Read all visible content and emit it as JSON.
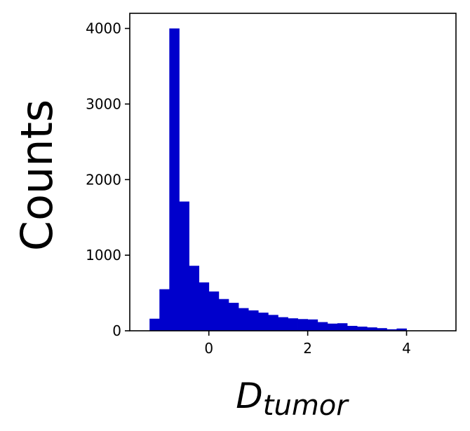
{
  "chart_data": {
    "type": "bar",
    "title": "",
    "ylabel": "Counts",
    "xlabel_main": "D",
    "xlabel_sub": "tumor",
    "xlim": [
      -1.6,
      5.0
    ],
    "ylim": [
      0,
      4200
    ],
    "x_ticks": [
      {
        "value": 0,
        "label": "0"
      },
      {
        "value": 2,
        "label": "2"
      },
      {
        "value": 4,
        "label": "4"
      }
    ],
    "y_ticks": [
      {
        "value": 0,
        "label": "0"
      },
      {
        "value": 1000,
        "label": "1000"
      },
      {
        "value": 2000,
        "label": "2000"
      },
      {
        "value": 3000,
        "label": "3000"
      },
      {
        "value": 4000,
        "label": "4000"
      }
    ],
    "bin_edges": [
      -1.2,
      -1.0,
      -0.8,
      -0.6,
      -0.4,
      -0.2,
      0.0,
      0.2,
      0.4,
      0.6,
      0.8,
      1.0,
      1.2,
      1.4,
      1.6,
      1.8,
      2.0,
      2.2,
      2.4,
      2.6,
      2.8,
      3.0,
      3.2,
      3.4,
      3.6,
      3.8,
      4.0
    ],
    "values": [
      160,
      550,
      4000,
      1710,
      860,
      640,
      520,
      420,
      370,
      300,
      270,
      240,
      210,
      180,
      165,
      155,
      150,
      115,
      95,
      100,
      65,
      55,
      45,
      35,
      20,
      30
    ],
    "bar_color": "#0000cc",
    "grid": false,
    "legend": "none"
  }
}
